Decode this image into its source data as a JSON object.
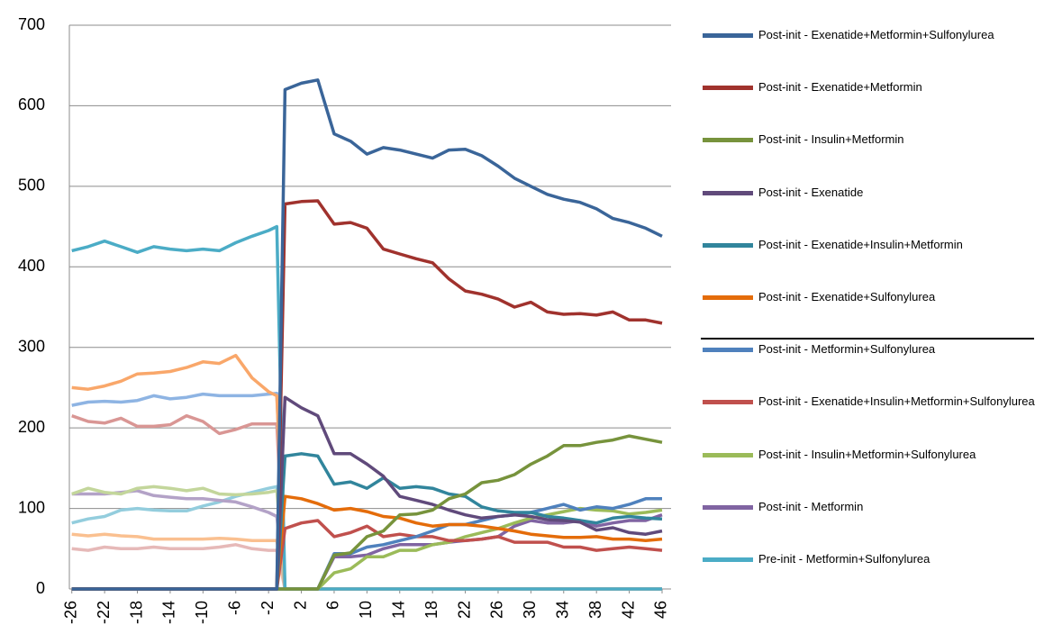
{
  "chart_data": {
    "type": "line",
    "x": [
      -26,
      -24,
      -22,
      -20,
      -18,
      -16,
      -14,
      -12,
      -10,
      -8,
      -6,
      -4,
      -2,
      -1,
      0,
      2,
      4,
      6,
      8,
      10,
      12,
      14,
      16,
      18,
      20,
      22,
      24,
      26,
      28,
      30,
      32,
      34,
      36,
      38,
      40,
      42,
      44,
      46
    ],
    "xlim": [
      -26.3,
      47.1
    ],
    "xticks": [
      -26,
      -22,
      -18,
      -14,
      -10,
      -6,
      -2,
      2,
      6,
      10,
      14,
      18,
      22,
      26,
      30,
      34,
      38,
      42,
      46
    ],
    "ylim": [
      0,
      700
    ],
    "yticks": [
      0,
      100,
      200,
      300,
      400,
      500,
      600,
      700
    ],
    "grid": true,
    "series": [
      {
        "name": "Post-init - Exenatide+Metformin+Sulfonylurea",
        "color": "#3a6599",
        "values": [
          0,
          0,
          0,
          0,
          0,
          0,
          0,
          0,
          0,
          0,
          0,
          0,
          0,
          0,
          620,
          628,
          632,
          565,
          556,
          540,
          548,
          545,
          540,
          535,
          545,
          546,
          538,
          525,
          510,
          500,
          490,
          484,
          480,
          472,
          460,
          455,
          448,
          438
        ]
      },
      {
        "name": "Post-init - Exenatide+Metformin",
        "color": "#a0322d",
        "values": [
          0,
          0,
          0,
          0,
          0,
          0,
          0,
          0,
          0,
          0,
          0,
          0,
          0,
          0,
          478,
          481,
          482,
          453,
          455,
          448,
          422,
          416,
          410,
          405,
          385,
          370,
          366,
          360,
          350,
          356,
          344,
          341,
          342,
          340,
          344,
          334,
          334,
          330
        ]
      },
      {
        "name": "Post-init - Insulin+Metformin",
        "color": "#77933c",
        "values": [
          0,
          0,
          0,
          0,
          0,
          0,
          0,
          0,
          0,
          0,
          0,
          0,
          0,
          0,
          0,
          0,
          0,
          42,
          45,
          65,
          72,
          92,
          93,
          98,
          112,
          118,
          132,
          135,
          142,
          155,
          165,
          178,
          178,
          182,
          185,
          190,
          186,
          182
        ]
      },
      {
        "name": "Post-init - Exenatide",
        "color": "#604a7b",
        "values": [
          0,
          0,
          0,
          0,
          0,
          0,
          0,
          0,
          0,
          0,
          0,
          0,
          0,
          0,
          238,
          225,
          215,
          168,
          168,
          155,
          140,
          115,
          110,
          105,
          98,
          92,
          88,
          90,
          92,
          90,
          86,
          85,
          83,
          73,
          76,
          70,
          68,
          72
        ]
      },
      {
        "name": "Post-init - Exenatide+Insulin+Metformin",
        "color": "#31859c",
        "values": [
          0,
          0,
          0,
          0,
          0,
          0,
          0,
          0,
          0,
          0,
          0,
          0,
          0,
          0,
          165,
          168,
          165,
          130,
          133,
          125,
          138,
          125,
          127,
          125,
          118,
          115,
          102,
          97,
          95,
          95,
          90,
          88,
          85,
          82,
          88,
          90,
          88,
          87
        ]
      },
      {
        "name": "Post-init - Exenatide+Sulfonylurea",
        "color": "#e46c0a",
        "values": [
          0,
          0,
          0,
          0,
          0,
          0,
          0,
          0,
          0,
          0,
          0,
          0,
          0,
          0,
          115,
          112,
          106,
          98,
          100,
          96,
          90,
          88,
          82,
          78,
          80,
          80,
          78,
          75,
          72,
          68,
          66,
          64,
          64,
          65,
          62,
          62,
          60,
          62
        ]
      },
      {
        "name": "Post-init - Metformin+Sulfonylurea",
        "color": "#4f81bd",
        "values": [
          0,
          0,
          0,
          0,
          0,
          0,
          0,
          0,
          0,
          0,
          0,
          0,
          0,
          0,
          0,
          0,
          0,
          44,
          44,
          52,
          55,
          60,
          65,
          72,
          80,
          80,
          85,
          90,
          92,
          95,
          100,
          105,
          98,
          102,
          100,
          105,
          112,
          112
        ]
      },
      {
        "name": "Post-init - Exenatide+Insulin+Metformin+Sulfonylurea",
        "color": "#c0504d",
        "values": [
          0,
          0,
          0,
          0,
          0,
          0,
          0,
          0,
          0,
          0,
          0,
          0,
          0,
          0,
          75,
          82,
          85,
          65,
          70,
          78,
          65,
          68,
          65,
          65,
          60,
          60,
          62,
          65,
          58,
          58,
          58,
          52,
          52,
          48,
          50,
          52,
          50,
          48
        ]
      },
      {
        "name": "Post-init - Insulin+Metformin+Sulfonylurea",
        "color": "#9bbb59",
        "values": [
          0,
          0,
          0,
          0,
          0,
          0,
          0,
          0,
          0,
          0,
          0,
          0,
          0,
          0,
          0,
          0,
          0,
          20,
          25,
          40,
          40,
          48,
          48,
          55,
          58,
          65,
          70,
          75,
          82,
          88,
          92,
          96,
          100,
          98,
          97,
          93,
          95,
          98
        ]
      },
      {
        "name": "Post-init - Metformin",
        "color": "#8064a2",
        "values": [
          0,
          0,
          0,
          0,
          0,
          0,
          0,
          0,
          0,
          0,
          0,
          0,
          0,
          0,
          0,
          0,
          0,
          40,
          40,
          42,
          50,
          55,
          55,
          55,
          58,
          60,
          62,
          65,
          78,
          85,
          82,
          82,
          85,
          78,
          82,
          85,
          85,
          92
        ]
      },
      {
        "name": "Pre-init - Metformin+Sulfonylurea",
        "color": "#4bacc6",
        "values": [
          420,
          425,
          432,
          425,
          418,
          425,
          422,
          420,
          422,
          420,
          430,
          438,
          445,
          450,
          0,
          0,
          0,
          0,
          0,
          0,
          0,
          0,
          0,
          0,
          0,
          0,
          0,
          0,
          0,
          0,
          0,
          0,
          0,
          0,
          0,
          0,
          0,
          0
        ]
      },
      {
        "name": null,
        "color": "#f9a76a",
        "values": [
          250,
          248,
          252,
          258,
          267,
          268,
          270,
          275,
          282,
          280,
          290,
          262,
          245,
          240,
          0,
          0,
          0,
          0,
          0,
          0,
          0,
          0,
          0,
          0,
          0,
          0,
          0,
          0,
          0,
          0,
          0,
          0,
          0,
          0,
          0,
          0,
          0,
          0
        ]
      },
      {
        "name": null,
        "color": "#8eb4e3",
        "values": [
          228,
          232,
          233,
          232,
          234,
          240,
          236,
          238,
          242,
          240,
          240,
          240,
          242,
          243,
          0,
          0,
          0,
          0,
          0,
          0,
          0,
          0,
          0,
          0,
          0,
          0,
          0,
          0,
          0,
          0,
          0,
          0,
          0,
          0,
          0,
          0,
          0,
          0
        ]
      },
      {
        "name": null,
        "color": "#d99694",
        "values": [
          215,
          208,
          206,
          212,
          202,
          202,
          204,
          215,
          208,
          193,
          198,
          205,
          205,
          205,
          0,
          0,
          0,
          0,
          0,
          0,
          0,
          0,
          0,
          0,
          0,
          0,
          0,
          0,
          0,
          0,
          0,
          0,
          0,
          0,
          0,
          0,
          0,
          0
        ]
      },
      {
        "name": null,
        "color": "#c3d69b",
        "values": [
          118,
          125,
          120,
          118,
          125,
          127,
          125,
          122,
          125,
          118,
          117,
          118,
          120,
          122,
          0,
          0,
          0,
          0,
          0,
          0,
          0,
          0,
          0,
          0,
          0,
          0,
          0,
          0,
          0,
          0,
          0,
          0,
          0,
          0,
          0,
          0,
          0,
          0
        ]
      },
      {
        "name": null,
        "color": "#b3a2c7",
        "values": [
          118,
          118,
          118,
          120,
          122,
          116,
          114,
          112,
          112,
          110,
          108,
          102,
          95,
          90,
          0,
          0,
          0,
          0,
          0,
          0,
          0,
          0,
          0,
          0,
          0,
          0,
          0,
          0,
          0,
          0,
          0,
          0,
          0,
          0,
          0,
          0,
          0,
          0
        ]
      },
      {
        "name": null,
        "color": "#93cddd",
        "values": [
          82,
          87,
          90,
          98,
          100,
          98,
          97,
          97,
          103,
          108,
          115,
          120,
          125,
          127,
          0,
          0,
          0,
          0,
          0,
          0,
          0,
          0,
          0,
          0,
          0,
          0,
          0,
          0,
          0,
          0,
          0,
          0,
          0,
          0,
          0,
          0,
          0,
          0
        ]
      },
      {
        "name": null,
        "color": "#fac090",
        "values": [
          68,
          66,
          68,
          66,
          65,
          62,
          62,
          62,
          62,
          63,
          62,
          60,
          60,
          60,
          0,
          0,
          0,
          0,
          0,
          0,
          0,
          0,
          0,
          0,
          0,
          0,
          0,
          0,
          0,
          0,
          0,
          0,
          0,
          0,
          0,
          0,
          0,
          0
        ]
      },
      {
        "name": null,
        "color": "#e6b9b8",
        "values": [
          50,
          48,
          52,
          50,
          50,
          52,
          50,
          50,
          50,
          52,
          55,
          50,
          48,
          48,
          0,
          0,
          0,
          0,
          0,
          0,
          0,
          0,
          0,
          0,
          0,
          0,
          0,
          0,
          0,
          0,
          0,
          0,
          0,
          0,
          0,
          0,
          0,
          0
        ]
      }
    ]
  }
}
